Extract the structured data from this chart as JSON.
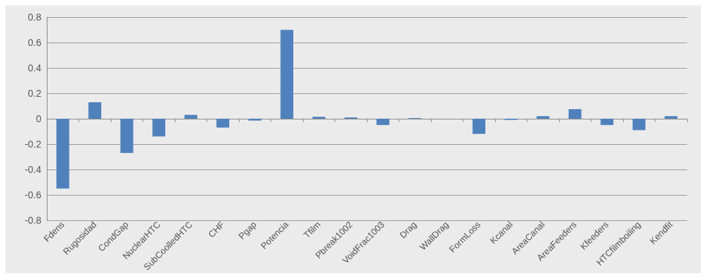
{
  "chart_data": {
    "type": "bar",
    "categories": [
      "Fdens",
      "Rugosidad",
      "CondGap",
      "NuclearHTC",
      "SubCoolledHTC",
      "CHF",
      "Pgap",
      "Potencia",
      "Tfilm",
      "Pbreak1002",
      "VoidFrac1003",
      "Drag",
      "WallDrag",
      "FormLoss",
      "Kcanal",
      "AreaCanal",
      "AreaFeeders",
      "Kfeeders",
      "HTCfilmboiling",
      "Kendfit"
    ],
    "values": [
      -0.55,
      0.13,
      -0.27,
      -0.14,
      0.03,
      -0.07,
      -0.015,
      0.7,
      0.015,
      0.01,
      -0.05,
      0.005,
      0,
      -0.12,
      -0.01,
      0.02,
      0.075,
      -0.05,
      -0.09,
      0.02
    ],
    "color": "#4f81bd",
    "ylim": [
      -0.8,
      0.8
    ],
    "yticks": [
      -0.8,
      -0.6,
      -0.4,
      -0.2,
      0,
      0.2,
      0.4,
      0.6,
      0.8
    ],
    "grid": "y"
  }
}
